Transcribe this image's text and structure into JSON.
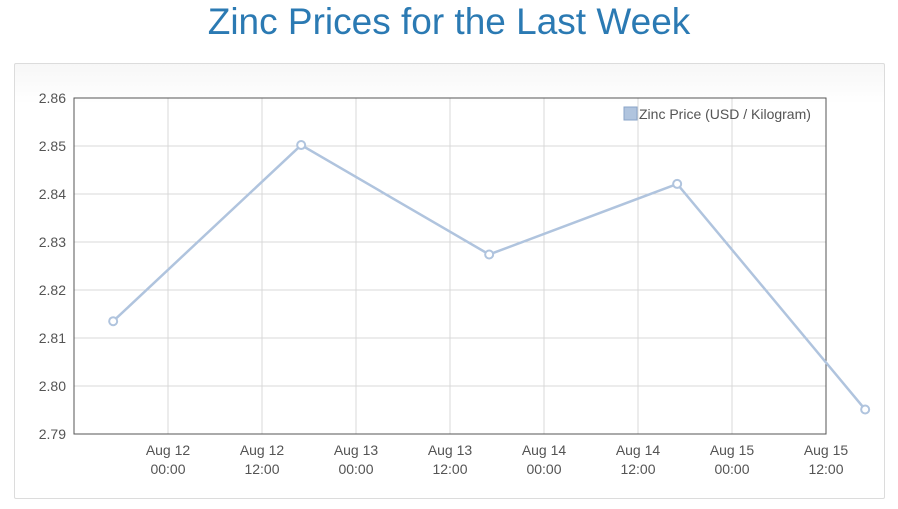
{
  "page": {
    "title": "Zinc Prices for the Last Week"
  },
  "chart_data": {
    "type": "line",
    "title": "Zinc Prices for the Last Week",
    "xlabel": "",
    "ylabel": "",
    "ylim": [
      2.79,
      2.86
    ],
    "y_ticks": [
      "2.86",
      "2.85",
      "2.84",
      "2.83",
      "2.82",
      "2.81",
      "2.80",
      "2.79"
    ],
    "xlim_hours": [
      -12,
      84
    ],
    "x_ticks": [
      {
        "hour": 0,
        "line1": "Aug 12",
        "line2": "00:00"
      },
      {
        "hour": 12,
        "line1": "Aug 12",
        "line2": "12:00"
      },
      {
        "hour": 24,
        "line1": "Aug 13",
        "line2": "00:00"
      },
      {
        "hour": 36,
        "line1": "Aug 13",
        "line2": "12:00"
      },
      {
        "hour": 48,
        "line1": "Aug 14",
        "line2": "00:00"
      },
      {
        "hour": 60,
        "line1": "Aug 14",
        "line2": "12:00"
      },
      {
        "hour": 72,
        "line1": "Aug 15",
        "line2": "00:00"
      },
      {
        "hour": 84,
        "line1": "Aug 15",
        "line2": "12:00"
      }
    ],
    "series": [
      {
        "name": "Zinc Price (USD / Kilogram)",
        "color": "#b0c4de",
        "points": [
          {
            "x": "Aug 11 17:00",
            "y": 2.8135
          },
          {
            "x": "Aug 12 17:00",
            "y": 2.8502
          },
          {
            "x": "Aug 13 17:00",
            "y": 2.8274
          },
          {
            "x": "Aug 14 17:00",
            "y": 2.8421
          },
          {
            "x": "Aug 15 17:00",
            "y": 2.7951
          }
        ]
      }
    ],
    "grid": true,
    "legend_position": "top-right"
  }
}
